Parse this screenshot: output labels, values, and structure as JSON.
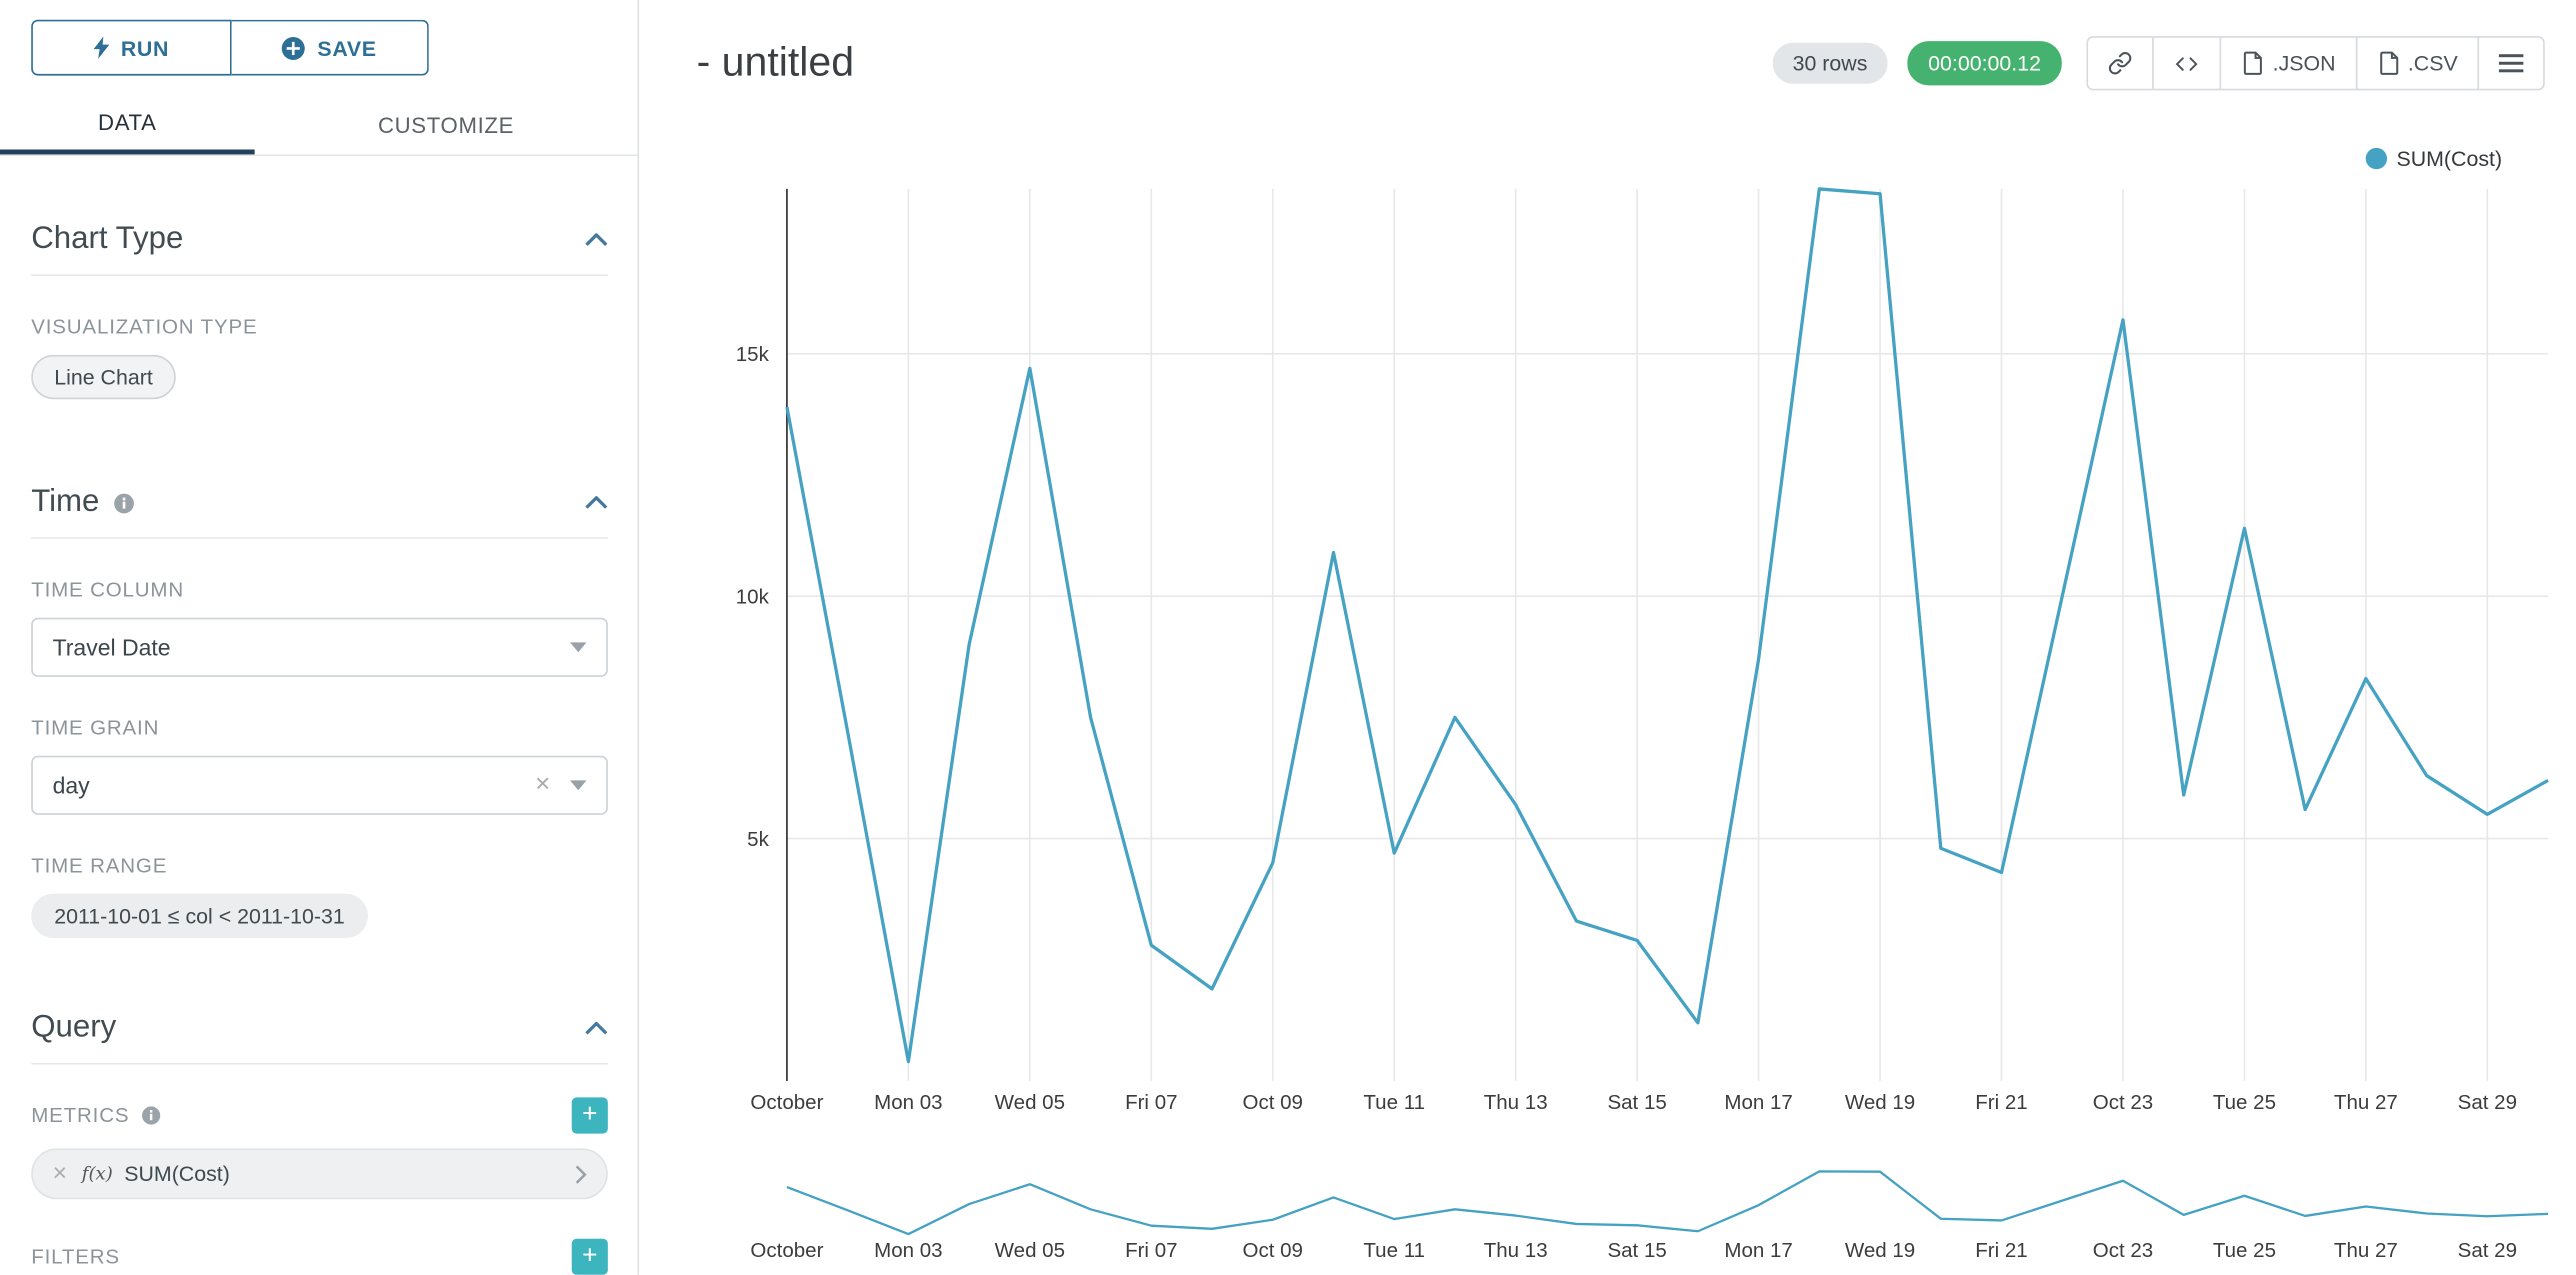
{
  "colors": {
    "accent_blue": "#2e6f96",
    "tab_underline": "#24415c",
    "teal_add_button": "#3db5bf",
    "timer_green": "#45b36f",
    "series_line": "#45a2c2"
  },
  "sidebar": {
    "run_label": "RUN",
    "save_label": "SAVE",
    "tabs": [
      {
        "label": "DATA"
      },
      {
        "label": "CUSTOMIZE"
      }
    ],
    "chart_type": {
      "title": "Chart Type",
      "viz_type_label": "VISUALIZATION TYPE",
      "viz_type_value": "Line Chart"
    },
    "time": {
      "title": "Time",
      "column_label": "TIME COLUMN",
      "column_value": "Travel Date",
      "grain_label": "TIME GRAIN",
      "grain_value": "day",
      "range_label": "TIME RANGE",
      "range_value": "2011-10-01 ≤ col < 2011-10-31"
    },
    "query": {
      "title": "Query",
      "metrics_label": "METRICS",
      "metric_fn": "f(x)",
      "metric_value": "SUM(Cost)",
      "filters_label": "FILTERS"
    }
  },
  "header": {
    "title": "- untitled",
    "rows_badge": "30 rows",
    "timer": "00:00:00.12",
    "json_label": ".JSON",
    "csv_label": ".CSV"
  },
  "legend": {
    "label": "SUM(Cost)"
  },
  "chart_data": {
    "type": "line",
    "title": "- untitled",
    "xlabel": "",
    "ylabel": "",
    "x": [
      "2011-10-01",
      "2011-10-02",
      "2011-10-03",
      "2011-10-04",
      "2011-10-05",
      "2011-10-06",
      "2011-10-07",
      "2011-10-08",
      "2011-10-09",
      "2011-10-10",
      "2011-10-11",
      "2011-10-12",
      "2011-10-13",
      "2011-10-14",
      "2011-10-15",
      "2011-10-16",
      "2011-10-17",
      "2011-10-18",
      "2011-10-19",
      "2011-10-20",
      "2011-10-21",
      "2011-10-22",
      "2011-10-23",
      "2011-10-24",
      "2011-10-25",
      "2011-10-26",
      "2011-10-27",
      "2011-10-28",
      "2011-10-29",
      "2011-10-30"
    ],
    "series": [
      {
        "name": "SUM(Cost)",
        "values": [
          13900,
          7200,
          400,
          9000,
          14700,
          7500,
          2800,
          1900,
          4500,
          10900,
          4700,
          7500,
          5700,
          3300,
          2900,
          1200,
          8700,
          18400,
          18300,
          4800,
          4300,
          10000,
          15700,
          5900,
          11400,
          5600,
          8300,
          6300,
          5500,
          6200
        ]
      }
    ],
    "xticks": [
      {
        "i": 0,
        "label": "October"
      },
      {
        "i": 2,
        "label": "Mon 03"
      },
      {
        "i": 4,
        "label": "Wed 05"
      },
      {
        "i": 6,
        "label": "Fri 07"
      },
      {
        "i": 8,
        "label": "Oct 09"
      },
      {
        "i": 10,
        "label": "Tue 11"
      },
      {
        "i": 12,
        "label": "Thu 13"
      },
      {
        "i": 14,
        "label": "Sat 15"
      },
      {
        "i": 16,
        "label": "Mon 17"
      },
      {
        "i": 18,
        "label": "Wed 19"
      },
      {
        "i": 20,
        "label": "Fri 21"
      },
      {
        "i": 22,
        "label": "Oct 23"
      },
      {
        "i": 24,
        "label": "Tue 25"
      },
      {
        "i": 26,
        "label": "Thu 27"
      },
      {
        "i": 28,
        "label": "Sat 29"
      }
    ],
    "yticks": [
      {
        "v": 5000,
        "label": "5k"
      },
      {
        "v": 10000,
        "label": "10k"
      },
      {
        "v": 15000,
        "label": "15k"
      }
    ],
    "ylim": [
      0,
      18400
    ],
    "color": "#45a2c2",
    "grid": true,
    "legend_position": "top-right",
    "has_mini_preview": true
  }
}
